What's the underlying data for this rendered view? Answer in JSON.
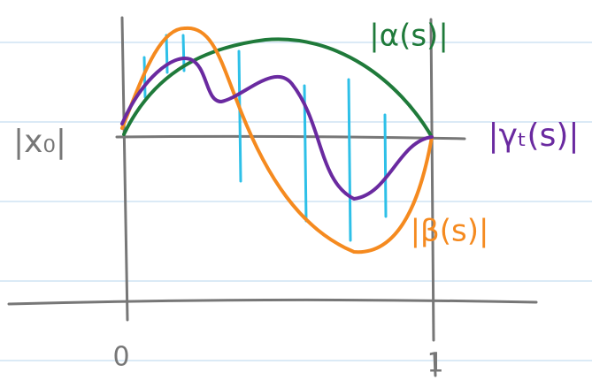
{
  "labels": {
    "x0": "|x₀|",
    "alpha": "|α(s)|",
    "gamma": "|γₜ(s)|",
    "beta": "|β(s)|",
    "zero": "0",
    "one": "1"
  }
}
